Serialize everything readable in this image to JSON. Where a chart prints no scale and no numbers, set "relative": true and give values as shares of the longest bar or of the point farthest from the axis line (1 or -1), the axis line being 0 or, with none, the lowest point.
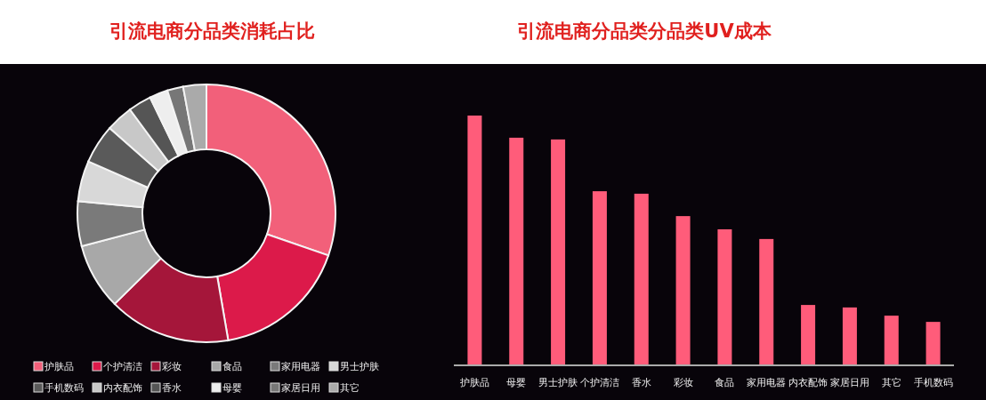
{
  "chart_data": [
    {
      "type": "donut",
      "title": "引流电商分品类消耗占比",
      "categories": [
        "护肤品",
        "个护清洁",
        "彩妆",
        "食品",
        "家用电器",
        "男士护肤",
        "手机数码",
        "内衣配饰",
        "香水",
        "母婴",
        "家居日用",
        "其它"
      ],
      "values": [
        30.3,
        17.0,
        15.3,
        8.3,
        5.6,
        5.1,
        4.9,
        3.4,
        2.9,
        2.3,
        2.0,
        2.9
      ],
      "colors": [
        "#f2607a",
        "#dc1a4a",
        "#a5163a",
        "#a8a8a8",
        "#7a7a7a",
        "#d8d8d8",
        "#5a5a5a",
        "#c8c8c8",
        "#555555",
        "#eeeeee",
        "#777777",
        "#aaaaaa"
      ],
      "legend": "bottom"
    },
    {
      "type": "bar",
      "title": "引流电商分品类分品类UV成本",
      "relative": true,
      "color": "#ff5c7a",
      "categories": [
        "护肤品",
        "母婴",
        "男士护肤",
        "个护清洁",
        "香水",
        "彩妆",
        "食品",
        "家用电器",
        "内衣配饰",
        "家居日用",
        "其它",
        "手机数码"
      ],
      "values": [
        1,
        0.911,
        0.904,
        0.696,
        0.686,
        0.596,
        0.543,
        0.504,
        0.239,
        0.229,
        0.196,
        0.171
      ]
    }
  ]
}
